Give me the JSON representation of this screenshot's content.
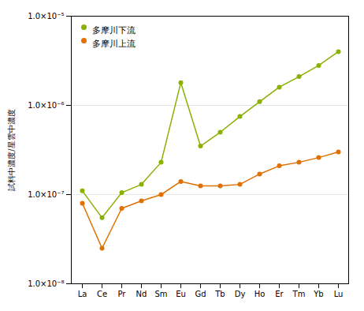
{
  "chart_data": {
    "type": "line",
    "y_label": "試料中濃度/星雲中濃度",
    "categories": [
      "La",
      "Ce",
      "Pr",
      "Nd",
      "Sm",
      "Eu",
      "Gd",
      "Tb",
      "Dy",
      "Ho",
      "Er",
      "Tm",
      "Yb",
      "Lu"
    ],
    "series": [
      {
        "name": "多摩川下流",
        "color": "#8ab000",
        "values": [
          1.1e-07,
          5.5e-08,
          1.05e-07,
          1.3e-07,
          2.3e-07,
          1.8e-06,
          3.5e-07,
          5e-07,
          7.5e-07,
          1.1e-06,
          1.6e-06,
          2.1e-06,
          2.8e-06,
          4e-06
        ]
      },
      {
        "name": "多摩川上流",
        "color": "#e07000",
        "values": [
          8e-08,
          2.5e-08,
          7e-08,
          8.5e-08,
          1e-07,
          1.4e-07,
          1.25e-07,
          1.25e-07,
          1.3e-07,
          1.7e-07,
          2.1e-07,
          2.3e-07,
          2.6e-07,
          3e-07
        ]
      }
    ],
    "ylim": [
      1e-08,
      1e-05
    ],
    "yticks": [
      {
        "value": 1e-08,
        "label": "1.0×10⁻⁸"
      },
      {
        "value": 1e-07,
        "label": "1.0×10⁻⁷"
      },
      {
        "value": 1e-06,
        "label": "1.0×10⁻⁶"
      },
      {
        "value": 1e-05,
        "label": "1.0×10⁻⁵"
      }
    ],
    "log": "y",
    "grid": true,
    "legend": "upper left",
    "marker": "circle"
  }
}
